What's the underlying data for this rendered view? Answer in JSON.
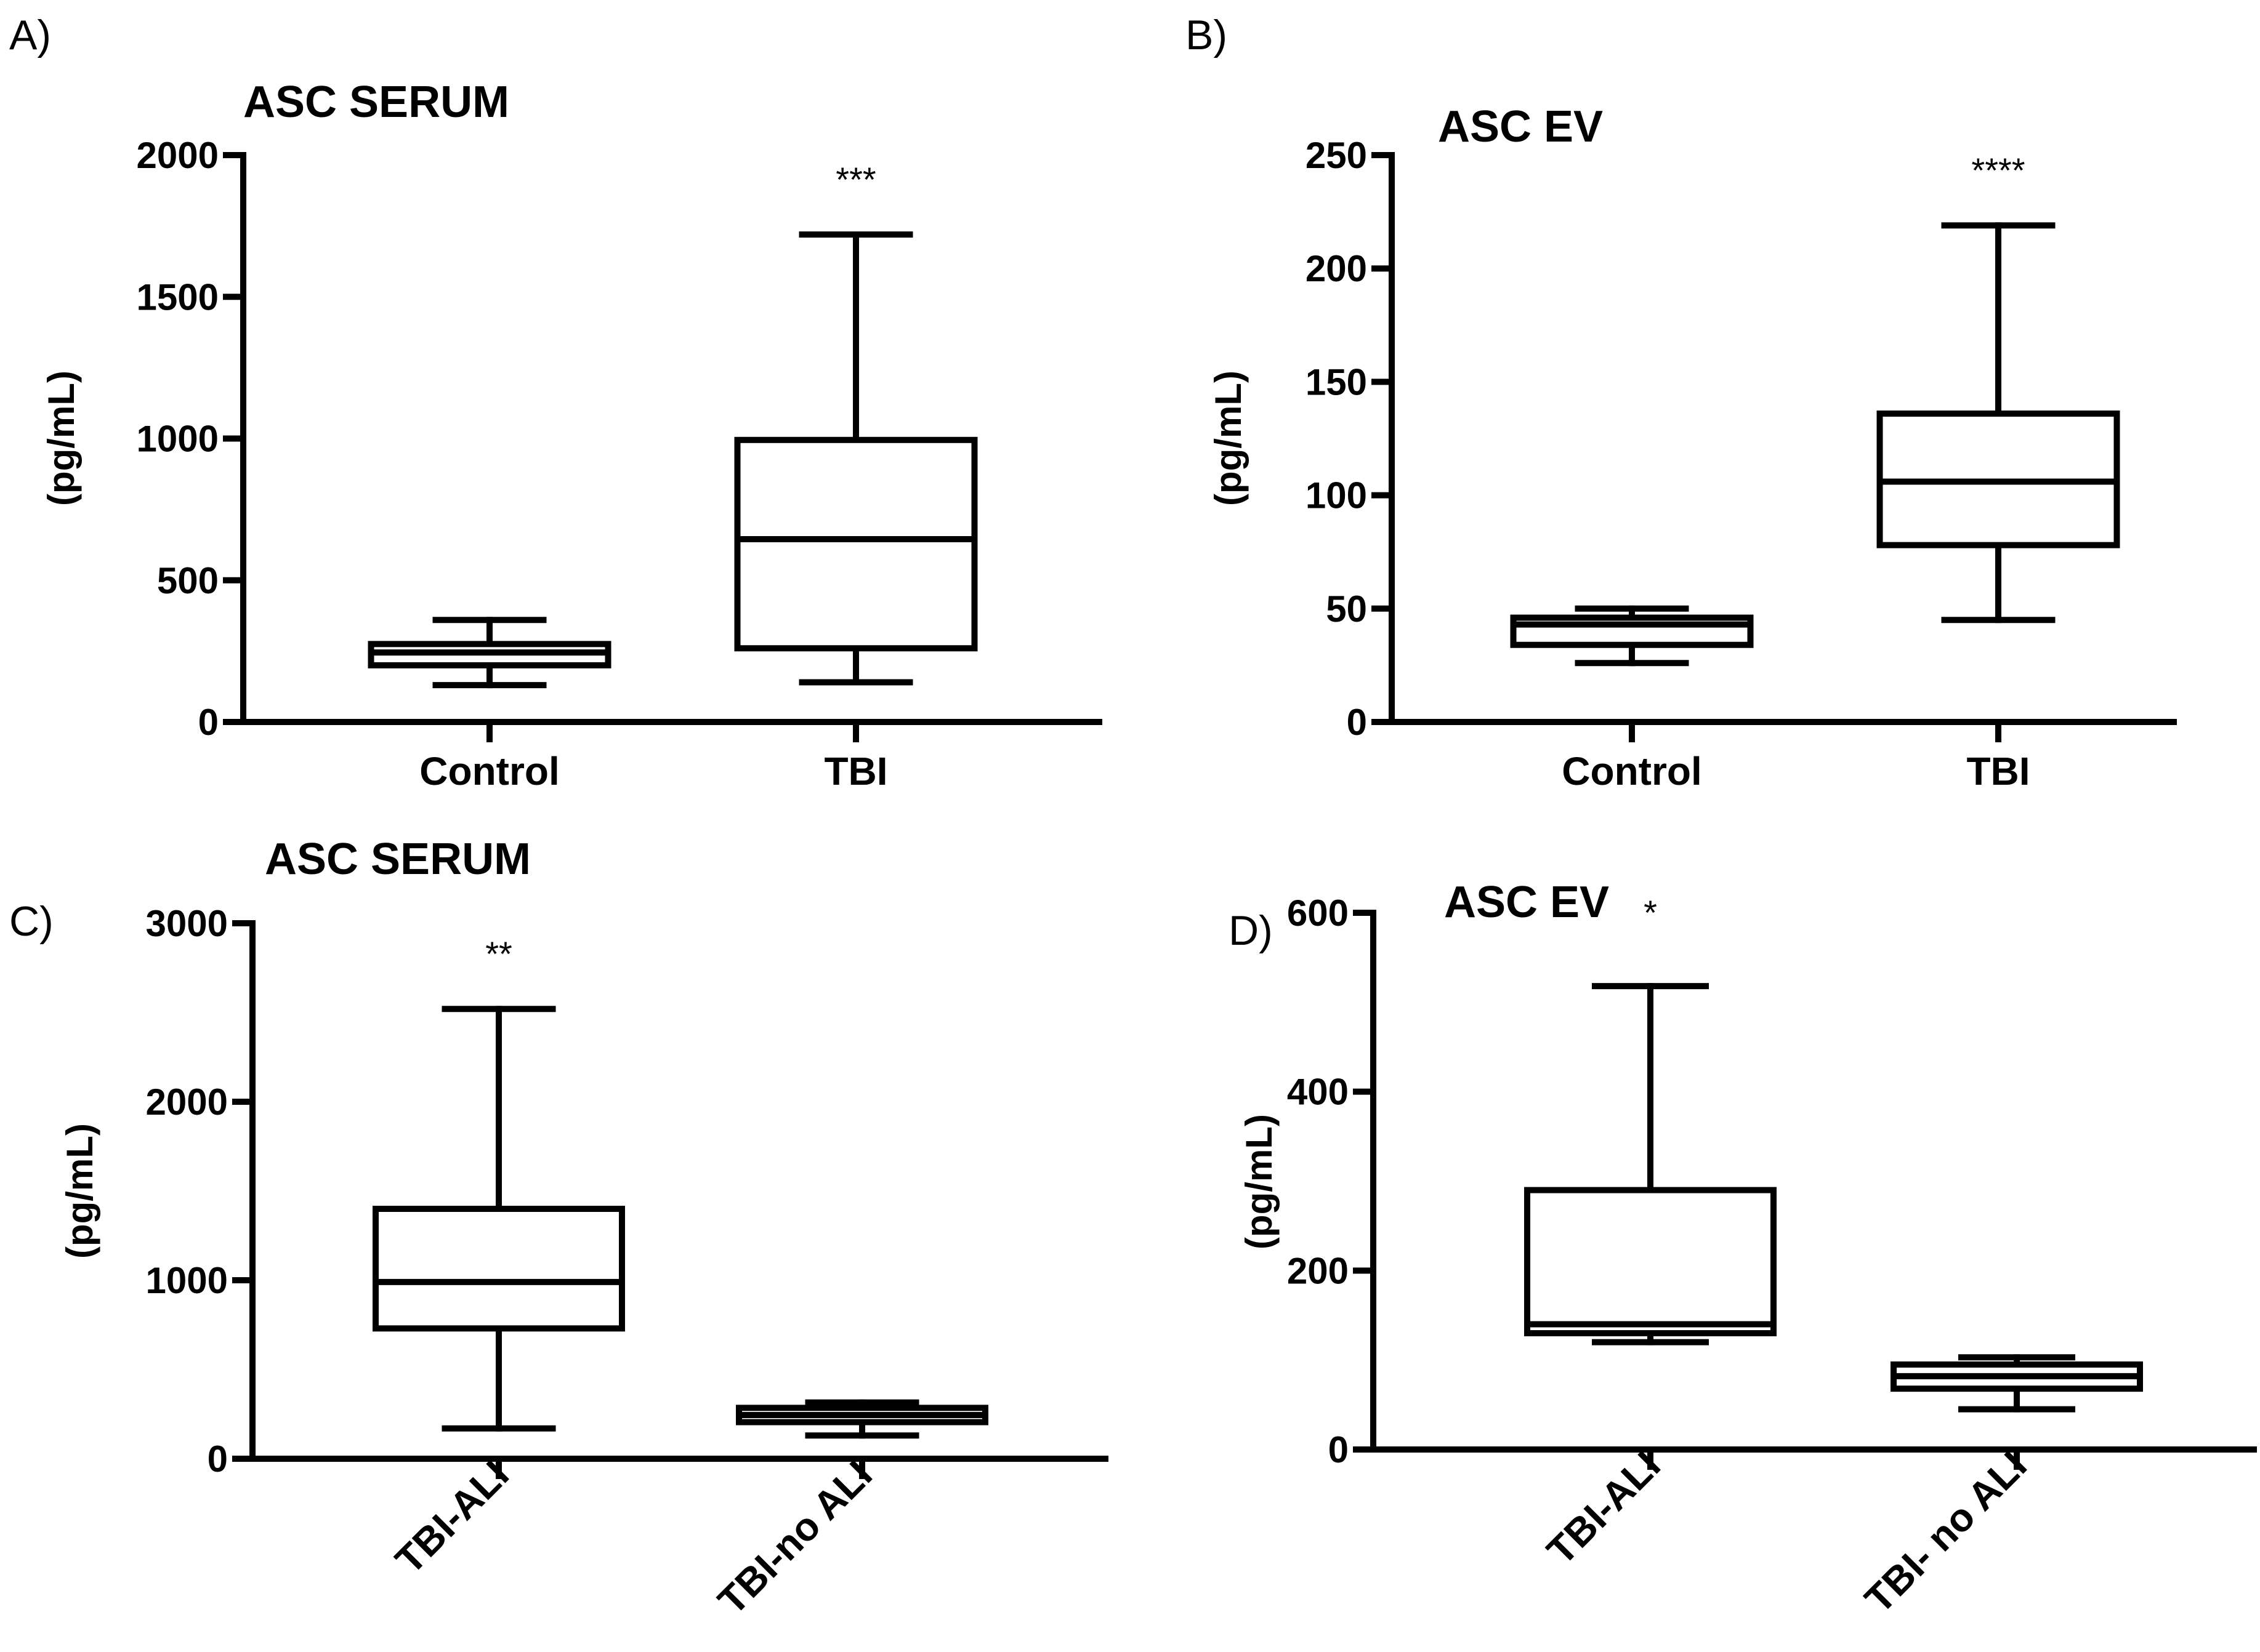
{
  "chart_data": [
    {
      "type": "box",
      "panel_label": "A)",
      "title": "ASC SERUM",
      "ylabel": "(pg/mL)",
      "xlabel": "",
      "ylim": [
        0,
        2000
      ],
      "yticks": [
        "0",
        "500",
        "1000",
        "1500",
        "2000"
      ],
      "categories": [
        "Control",
        "TBI"
      ],
      "category_label_rotation": 0,
      "boxes": [
        {
          "category": "Control",
          "min": 130,
          "q1": 200,
          "median": 245,
          "q3": 275,
          "max": 360,
          "significance": ""
        },
        {
          "category": "TBI",
          "min": 140,
          "q1": 260,
          "median": 645,
          "q3": 995,
          "max": 1720,
          "significance": "***"
        }
      ]
    },
    {
      "type": "box",
      "panel_label": "B)",
      "title": "ASC EV",
      "ylabel": "(pg/mL)",
      "xlabel": "",
      "ylim": [
        0,
        250
      ],
      "yticks": [
        "0",
        "50",
        "100",
        "150",
        "200",
        "250"
      ],
      "categories": [
        "Control",
        "TBI"
      ],
      "category_label_rotation": 0,
      "boxes": [
        {
          "category": "Control",
          "min": 26,
          "q1": 34,
          "median": 43,
          "q3": 46,
          "max": 50,
          "significance": ""
        },
        {
          "category": "TBI",
          "min": 45,
          "q1": 78,
          "median": 106,
          "q3": 136,
          "max": 219,
          "significance": "****"
        }
      ]
    },
    {
      "type": "box",
      "panel_label": "C)",
      "title": "ASC SERUM",
      "ylabel": "(pg/mL)",
      "xlabel": "",
      "ylim": [
        0,
        3000
      ],
      "yticks": [
        "0",
        "1000",
        "2000",
        "3000"
      ],
      "categories": [
        "TBI-ALI",
        "TBI-no ALI"
      ],
      "category_label_rotation": -45,
      "boxes": [
        {
          "category": "TBI-ALI",
          "min": 170,
          "q1": 730,
          "median": 990,
          "q3": 1400,
          "max": 2520,
          "significance": "**"
        },
        {
          "category": "TBI-no ALI",
          "min": 130,
          "q1": 205,
          "median": 245,
          "q3": 285,
          "max": 315,
          "significance": ""
        }
      ]
    },
    {
      "type": "box",
      "panel_label": "D)",
      "title": "ASC EV",
      "ylabel": "(pg/mL)",
      "xlabel": "",
      "ylim": [
        0,
        600
      ],
      "yticks": [
        "0",
        "200",
        "400",
        "600"
      ],
      "categories": [
        "TBI-ALI",
        "TBI- no ALI"
      ],
      "category_label_rotation": -45,
      "boxes": [
        {
          "category": "TBI-ALI",
          "min": 120,
          "q1": 130,
          "median": 140,
          "q3": 290,
          "max": 518,
          "significance": "*"
        },
        {
          "category": "TBI- no ALI",
          "min": 45,
          "q1": 68,
          "median": 82,
          "q3": 95,
          "max": 103,
          "significance": ""
        }
      ]
    }
  ]
}
